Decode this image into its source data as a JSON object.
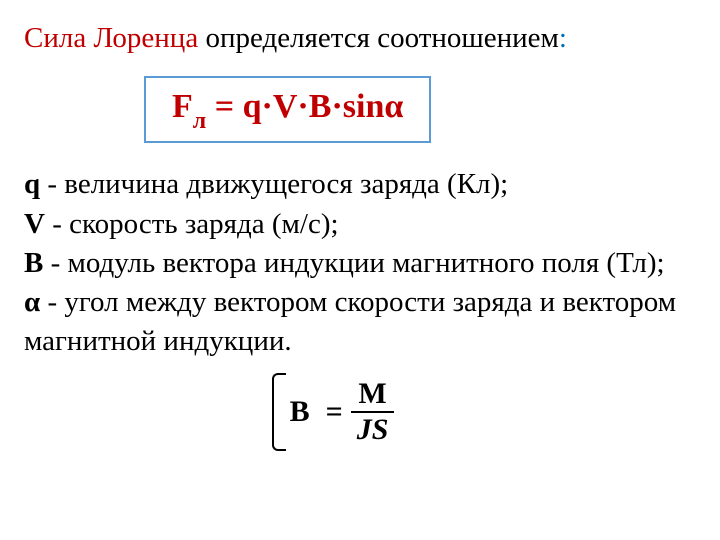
{
  "heading": {
    "part_red": "Сила Лоренца",
    "part_black": " определяется соотношением",
    "part_blue": ":"
  },
  "formula": {
    "F": "F",
    "sub": "л",
    "rest": " = q·V·B·sinα",
    "box_border_color": "#5b9bd5",
    "text_color": "#c00000",
    "fontsize": 34
  },
  "definitions": {
    "q": {
      "symbol": "q",
      "text": " - величина движущегося заряда (Кл);"
    },
    "v": {
      "symbol": "V",
      "text": " - скорость заряда (м/c);"
    },
    "b": {
      "symbol": "B",
      "text": " - модуль вектора индукции магнитного поля (Тл);"
    },
    "alpha": {
      "symbol": "α",
      "text": " - угол между вектором скорости заряда и вектором магнитной индукции."
    }
  },
  "unit_formula": {
    "left": "B",
    "eq": "=",
    "num": "M",
    "den": "JS"
  },
  "colors": {
    "red": "#c00000",
    "blue": "#0070c0",
    "black": "#000000",
    "box_border": "#5b9bd5",
    "background": "#ffffff"
  },
  "typography": {
    "body_fontsize": 29,
    "formula_fontsize": 34,
    "font_family": "Times New Roman"
  }
}
